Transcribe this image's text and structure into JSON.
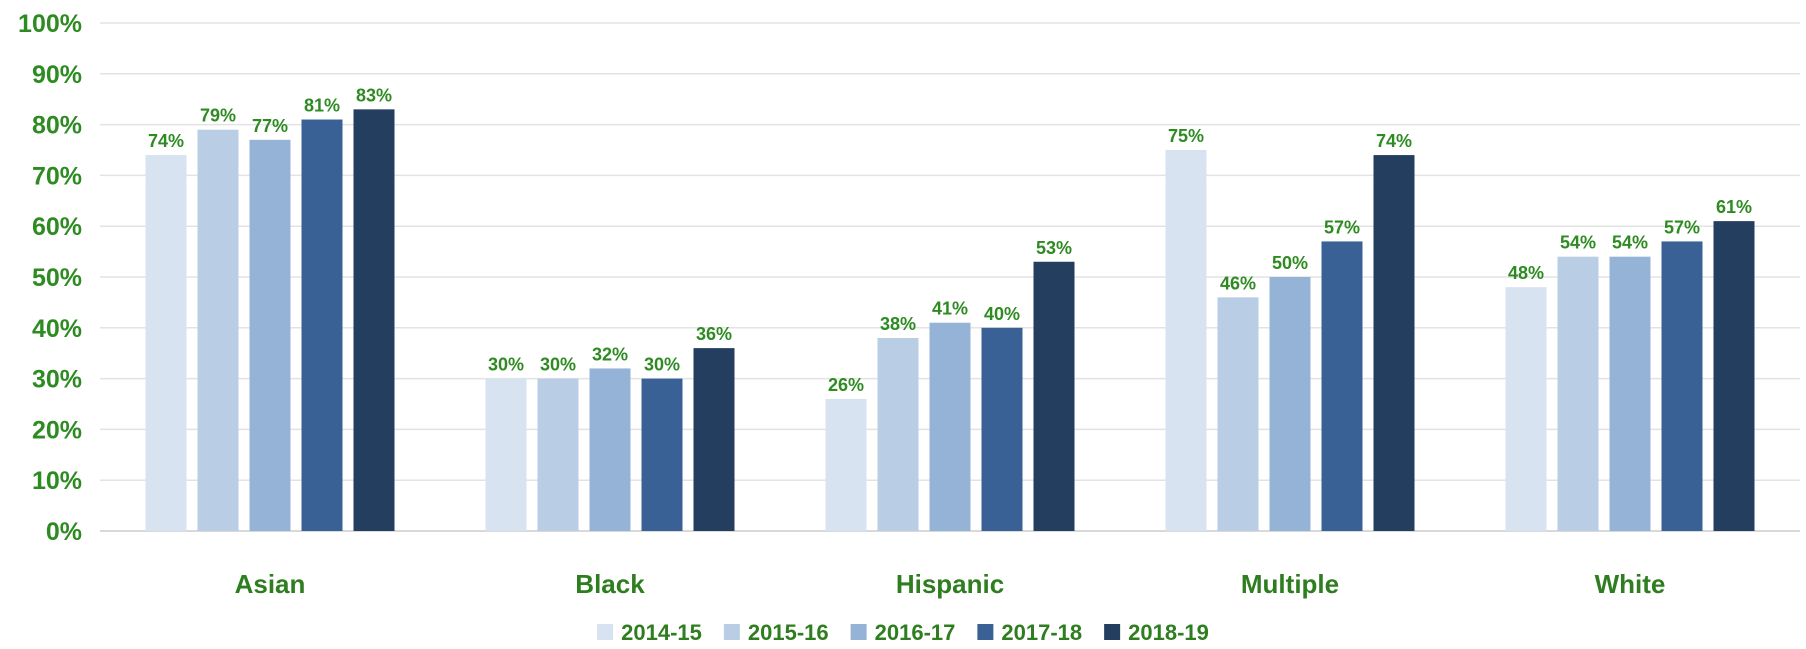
{
  "chart_data": {
    "type": "bar",
    "categories": [
      "Asian",
      "Black",
      "Hispanic",
      "Multiple",
      "White"
    ],
    "series": [
      {
        "name": "2014-15",
        "values": [
          74,
          30,
          26,
          75,
          48
        ],
        "color": "#d7e3f0"
      },
      {
        "name": "2015-16",
        "values": [
          79,
          30,
          38,
          46,
          54
        ],
        "color": "#b9cde5"
      },
      {
        "name": "2016-17",
        "values": [
          77,
          32,
          41,
          50,
          54
        ],
        "color": "#95b3d7"
      },
      {
        "name": "2017-18",
        "values": [
          81,
          30,
          40,
          57,
          57
        ],
        "color": "#3a6195"
      },
      {
        "name": "2018-19",
        "values": [
          83,
          36,
          53,
          74,
          61
        ],
        "color": "#243e60"
      }
    ],
    "value_suffix": "%",
    "yticks": [
      "0%",
      "10%",
      "20%",
      "30%",
      "40%",
      "50%",
      "60%",
      "70%",
      "80%",
      "90%",
      "100%"
    ],
    "ylim": [
      0,
      100
    ],
    "grid": true,
    "legend_position": "bottom",
    "title": "",
    "xlabel": "",
    "ylabel": "",
    "colors": {
      "label_green": "#2e8b22",
      "category_green": "#2e7d1f",
      "gridline": "#e3e3e3",
      "axis": "#d9d9d9"
    }
  }
}
